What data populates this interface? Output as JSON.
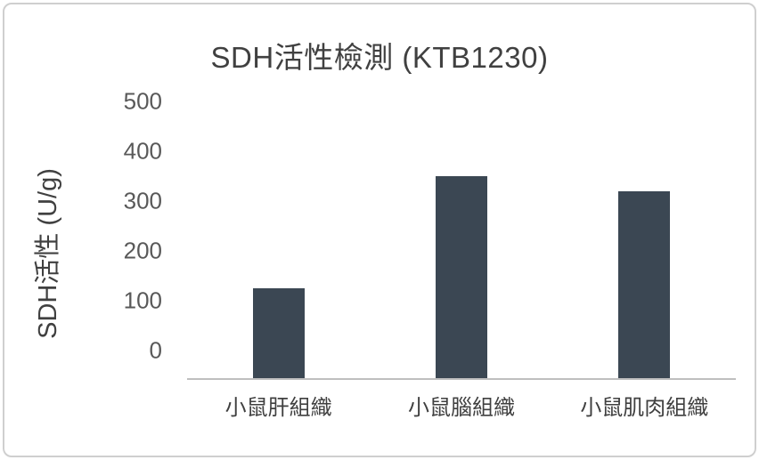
{
  "colors": {
    "bar": "#3b4753",
    "axis_line": "#bfbfbf",
    "tick_text": "#595959",
    "title_text": "#404040",
    "frame_border": "#cfcfcf"
  },
  "chart_data": {
    "type": "bar",
    "title": "SDH活性檢測 (KTB1230)",
    "ylabel": "SDH活性 (U/g)",
    "xlabel": "",
    "categories": [
      "小鼠肝組織",
      "小鼠腦組織",
      "小鼠肌肉組織"
    ],
    "values": [
      180,
      405,
      375
    ],
    "ylim": [
      0,
      500
    ],
    "y_ticks": [
      0,
      100,
      200,
      300,
      400,
      500
    ],
    "grid": false,
    "legend": "none"
  }
}
